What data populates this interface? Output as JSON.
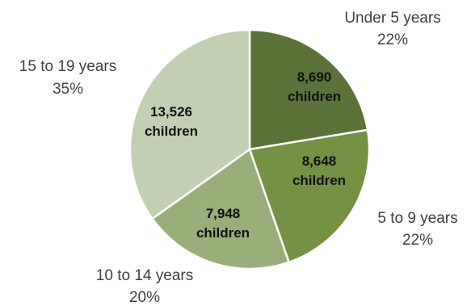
{
  "chart_data": {
    "type": "pie",
    "title": "",
    "slices": [
      {
        "category": "Under 5 years",
        "percent_label": "22%",
        "value": 8690,
        "value_label": "8,690",
        "unit_label": "children",
        "color": "#5b7238"
      },
      {
        "category": "5 to 9 years",
        "percent_label": "22%",
        "value": 8648,
        "value_label": "8,648",
        "unit_label": "children",
        "color": "#749144"
      },
      {
        "category": "10 to 14 years",
        "percent_label": "20%",
        "value": 7948,
        "value_label": "7,948",
        "unit_label": "children",
        "color": "#9aae7a"
      },
      {
        "category": "15 to 19 years",
        "percent_label": "35%",
        "value": 13526,
        "value_label": "13,526",
        "unit_label": "children",
        "color": "#c3cfb3"
      }
    ],
    "start_angle_deg": 0,
    "direction": "clockwise",
    "legend": "none"
  }
}
